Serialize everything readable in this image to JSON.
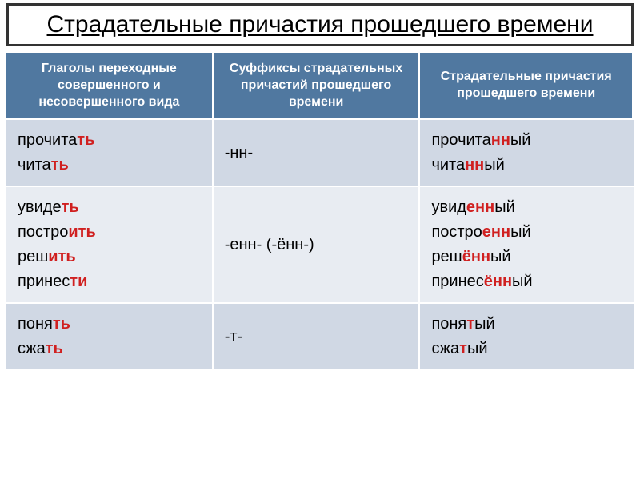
{
  "title": "Страдательные причастия прошедшего времени",
  "headers": [
    "Глаголы переходные совершенного и несовершенного вида",
    "Суффиксы страдательных причастий прошедшего времени",
    "Страдательные причастия прошедшего времени"
  ],
  "rows": [
    {
      "bg": "#d0d8e4",
      "verbs": [
        [
          {
            "t": "прочита",
            "c": "black"
          },
          {
            "t": "ть",
            "c": "red"
          }
        ],
        [
          {
            "t": "чита",
            "c": "black"
          },
          {
            "t": "ть",
            "c": "red"
          }
        ]
      ],
      "suffix": "-нн-",
      "participles": [
        [
          {
            "t": "прочита",
            "c": "black"
          },
          {
            "t": "нн",
            "c": "red"
          },
          {
            "t": "ый",
            "c": "black"
          }
        ],
        [
          {
            "t": "чита",
            "c": "black"
          },
          {
            "t": "нн",
            "c": "red"
          },
          {
            "t": "ый",
            "c": "black"
          }
        ]
      ]
    },
    {
      "bg": "#e8ecf2",
      "verbs": [
        [
          {
            "t": "увиде",
            "c": "black"
          },
          {
            "t": "ть",
            "c": "red"
          }
        ],
        [
          {
            "t": "постро",
            "c": "black"
          },
          {
            "t": "ить",
            "c": "red"
          }
        ],
        [
          {
            "t": "реш",
            "c": "black"
          },
          {
            "t": "ить",
            "c": "red"
          }
        ],
        [
          {
            "t": "принес",
            "c": "black"
          },
          {
            "t": "ти",
            "c": "red"
          }
        ]
      ],
      "suffix": "-енн- (-ённ-)",
      "participles": [
        [
          {
            "t": "увид",
            "c": "black"
          },
          {
            "t": "енн",
            "c": "red"
          },
          {
            "t": "ый",
            "c": "black"
          }
        ],
        [
          {
            "t": "постро",
            "c": "black"
          },
          {
            "t": "енн",
            "c": "red"
          },
          {
            "t": "ый",
            "c": "black"
          }
        ],
        [
          {
            "t": "реш",
            "c": "black"
          },
          {
            "t": "ённ",
            "c": "red"
          },
          {
            "t": "ый",
            "c": "black"
          }
        ],
        [
          {
            "t": "принес",
            "c": "black"
          },
          {
            "t": "ённ",
            "c": "red"
          },
          {
            "t": "ый",
            "c": "black"
          }
        ]
      ]
    },
    {
      "bg": "#d0d8e4",
      "verbs": [
        [
          {
            "t": "поня",
            "c": "black"
          },
          {
            "t": "ть",
            "c": "red"
          }
        ],
        [
          {
            "t": "сжа",
            "c": "black"
          },
          {
            "t": "ть",
            "c": "red"
          }
        ]
      ],
      "suffix": "-т-",
      "participles": [
        [
          {
            "t": "поня",
            "c": "black"
          },
          {
            "t": "т",
            "c": "red"
          },
          {
            "t": "ый",
            "c": "black"
          }
        ],
        [
          {
            "t": "сжа",
            "c": "black"
          },
          {
            "t": "т",
            "c": "red"
          },
          {
            "t": "ый",
            "c": "black"
          }
        ]
      ]
    }
  ],
  "style": {
    "title_fontsize": 30,
    "header_bg": "#5078a0",
    "header_fg": "#ffffff",
    "header_fontsize": 16,
    "cell_fontsize": 20,
    "red": "#d02020",
    "black": "#000000",
    "grid_line": "#ffffff"
  }
}
